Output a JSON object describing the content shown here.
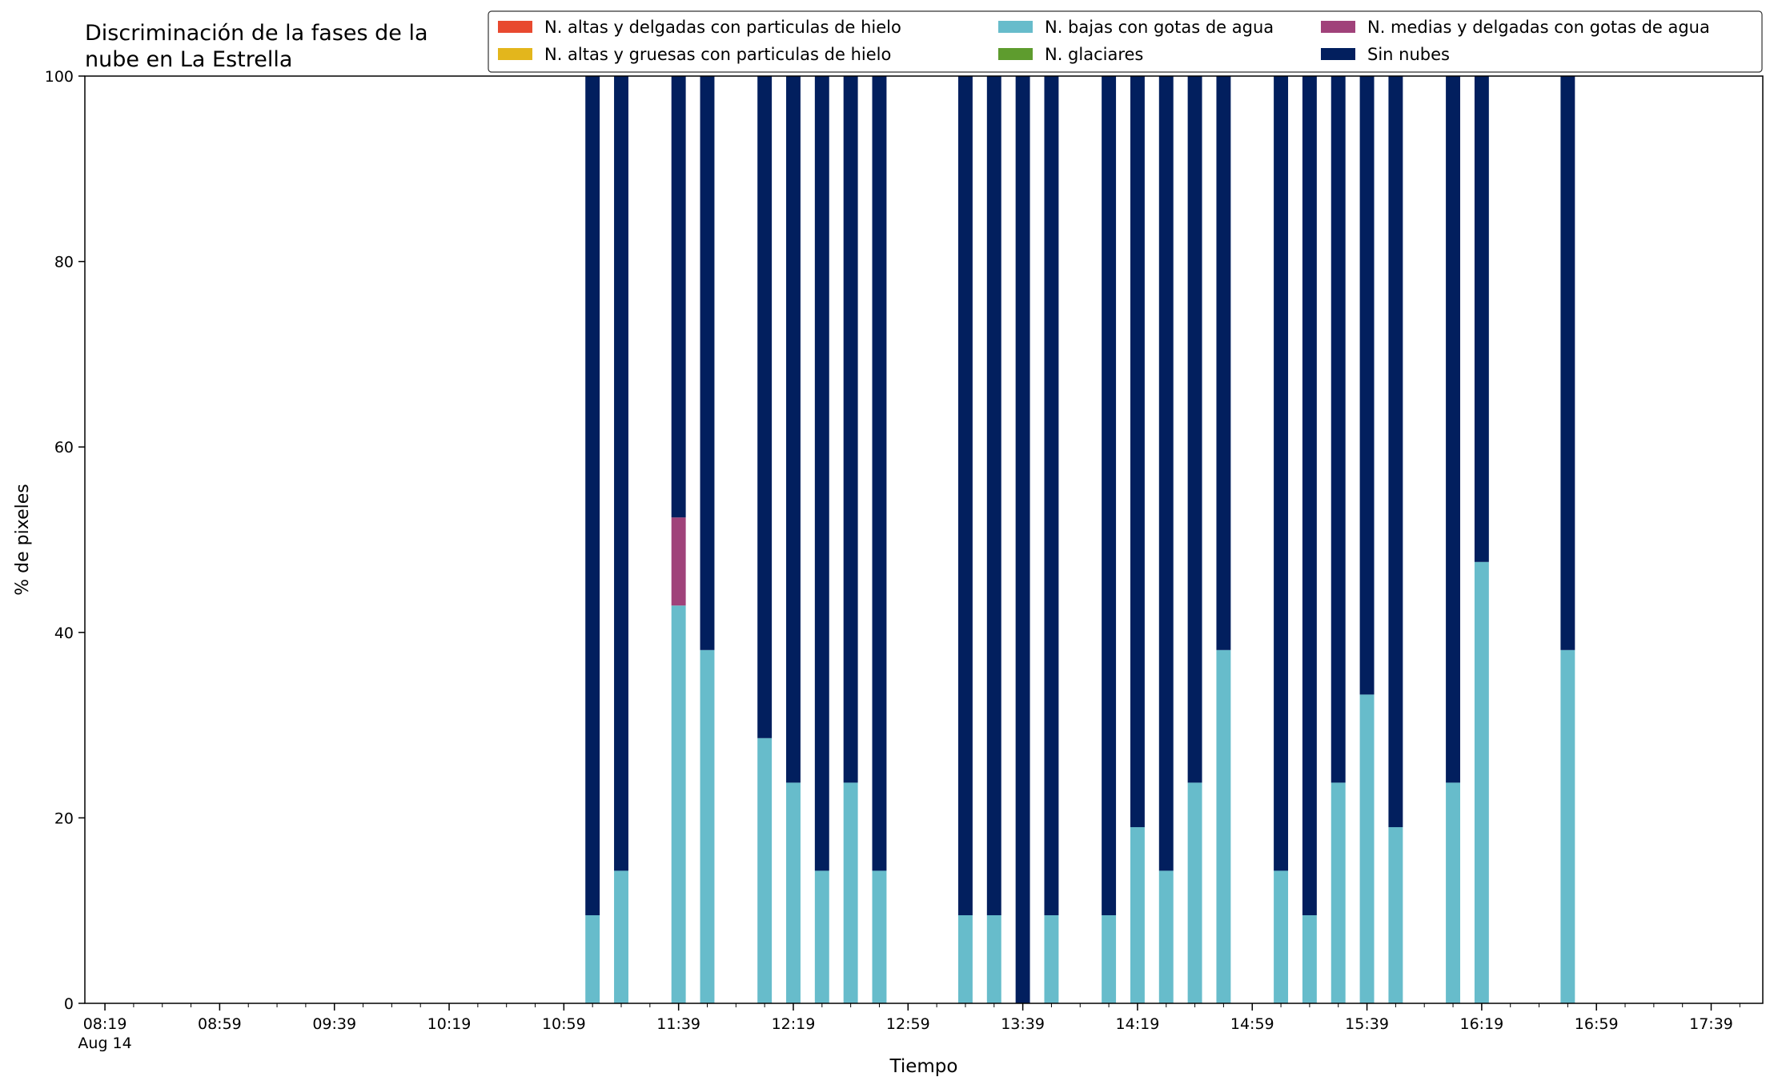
{
  "chart_data": {
    "type": "bar",
    "stacked": true,
    "title": "Discriminación de la fases de la\nnube en La Estrella",
    "xlabel": "Tiempo",
    "ylabel": "% de pixeles",
    "ylim": [
      0,
      100
    ],
    "yticks": [
      0,
      20,
      40,
      60,
      80,
      100
    ],
    "xlim_minutes": [
      "08:12",
      "17:57"
    ],
    "xticks": [
      {
        "time": "08:19",
        "label": "08:19",
        "sublabel": "Aug 14"
      },
      {
        "time": "08:59",
        "label": "08:59"
      },
      {
        "time": "09:39",
        "label": "09:39"
      },
      {
        "time": "10:19",
        "label": "10:19"
      },
      {
        "time": "10:59",
        "label": "10:59"
      },
      {
        "time": "11:39",
        "label": "11:39"
      },
      {
        "time": "12:19",
        "label": "12:19"
      },
      {
        "time": "12:59",
        "label": "12:59"
      },
      {
        "time": "13:39",
        "label": "13:39"
      },
      {
        "time": "14:19",
        "label": "14:19"
      },
      {
        "time": "14:59",
        "label": "14:59"
      },
      {
        "time": "15:39",
        "label": "15:39"
      },
      {
        "time": "16:19",
        "label": "16:19"
      },
      {
        "time": "16:59",
        "label": "16:59"
      },
      {
        "time": "17:39",
        "label": "17:39"
      }
    ],
    "minor_tick_interval_minutes": 10,
    "legend_position": "top-right",
    "legend_columns": 3,
    "series": [
      {
        "name": "N. altas y delgadas con particulas de hielo",
        "color": "#e8492f"
      },
      {
        "name": "N. altas y gruesas con particulas de hielo",
        "color": "#e3b61c"
      },
      {
        "name": "N. bajas con gotas de agua",
        "color": "#67bccb"
      },
      {
        "name": "N. glaciares",
        "color": "#5e9c2e"
      },
      {
        "name": "N. medias y delgadas con gotas de agua",
        "color": "#a0427a"
      },
      {
        "name": "Sin nubes",
        "color": "#021f5e"
      }
    ],
    "x": [
      "11:09",
      "11:19",
      "11:39",
      "11:49",
      "12:09",
      "12:19",
      "12:29",
      "12:39",
      "12:49",
      "13:19",
      "13:29",
      "13:39",
      "13:49",
      "14:09",
      "14:19",
      "14:29",
      "14:39",
      "14:49",
      "15:09",
      "15:19",
      "15:29",
      "15:39",
      "15:49",
      "16:09",
      "16:19",
      "16:49"
    ],
    "values": {
      "N. altas y delgadas con particulas de hielo": [
        0,
        0,
        0,
        0,
        0,
        0,
        0,
        0,
        0,
        0,
        0,
        0,
        0,
        0,
        0,
        0,
        0,
        0,
        0,
        0,
        0,
        0,
        0,
        0,
        0,
        0
      ],
      "N. altas y gruesas con particulas de hielo": [
        0,
        0,
        0,
        0,
        0,
        0,
        0,
        0,
        0,
        0,
        0,
        0,
        0,
        0,
        0,
        0,
        0,
        0,
        0,
        0,
        0,
        0,
        0,
        0,
        0,
        0
      ],
      "N. bajas con gotas de agua": [
        9.5,
        14.3,
        42.9,
        38.1,
        28.6,
        23.8,
        14.3,
        23.8,
        14.3,
        9.5,
        9.5,
        0,
        9.5,
        9.5,
        19.0,
        14.3,
        23.8,
        38.1,
        14.3,
        9.5,
        23.8,
        33.3,
        19.0,
        23.8,
        47.6,
        38.1
      ],
      "N. glaciares": [
        0,
        0,
        0,
        0,
        0,
        0,
        0,
        0,
        0,
        0,
        0,
        0,
        0,
        0,
        0,
        0,
        0,
        0,
        0,
        0,
        0,
        0,
        0,
        0,
        0,
        0
      ],
      "N. medias y delgadas con gotas de agua": [
        0,
        0,
        9.5,
        0,
        0,
        0,
        0,
        0,
        0,
        0,
        0,
        0,
        0,
        0,
        0,
        0,
        0,
        0,
        0,
        0,
        0,
        0,
        0,
        0,
        0,
        0
      ],
      "Sin nubes": [
        90.5,
        85.7,
        47.6,
        61.9,
        71.4,
        76.2,
        85.7,
        76.2,
        85.7,
        90.5,
        90.5,
        100,
        90.5,
        90.5,
        81.0,
        85.7,
        76.2,
        61.9,
        85.7,
        90.5,
        76.2,
        66.7,
        81.0,
        76.2,
        52.4,
        61.9
      ]
    }
  }
}
